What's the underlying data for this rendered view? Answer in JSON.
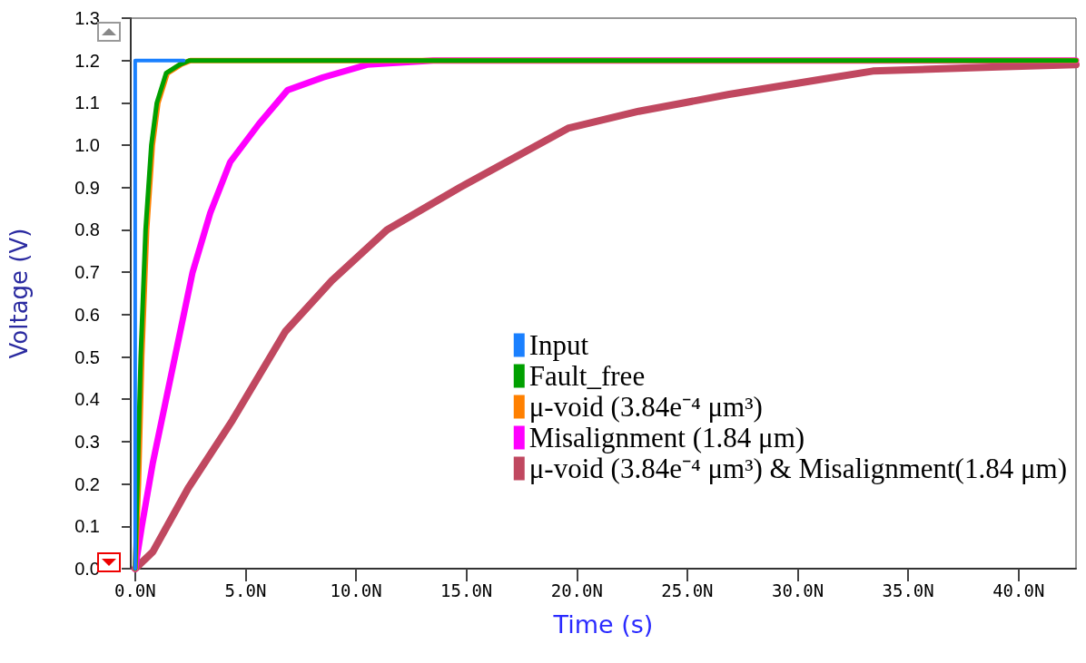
{
  "chart_data": {
    "type": "line",
    "xlabel": "Time (s)",
    "ylabel": "Voltage (V)",
    "xlim": [
      -0.2,
      42.6
    ],
    "ylim": [
      0,
      1.3
    ],
    "xticks": [
      {
        "value": 0,
        "label": "0.0N"
      },
      {
        "value": 5,
        "label": "5.0N"
      },
      {
        "value": 10,
        "label": "10.0N"
      },
      {
        "value": 15,
        "label": "15.0N"
      },
      {
        "value": 20,
        "label": "20.0N"
      },
      {
        "value": 25,
        "label": "25.0N"
      },
      {
        "value": 30,
        "label": "30.0N"
      },
      {
        "value": 35,
        "label": "35.0N"
      },
      {
        "value": 40,
        "label": "40.0N"
      }
    ],
    "yticks": [
      {
        "value": 0,
        "label": "0.0"
      },
      {
        "value": 0.1,
        "label": "0.1"
      },
      {
        "value": 0.2,
        "label": "0.2"
      },
      {
        "value": 0.3,
        "label": "0.3"
      },
      {
        "value": 0.4,
        "label": "0.4"
      },
      {
        "value": 0.5,
        "label": "0.5"
      },
      {
        "value": 0.6,
        "label": "0.6"
      },
      {
        "value": 0.7,
        "label": "0.7"
      },
      {
        "value": 0.8,
        "label": "0.8"
      },
      {
        "value": 0.9,
        "label": "0.9"
      },
      {
        "value": 1.0,
        "label": "1.0"
      },
      {
        "value": 1.1,
        "label": "1.1"
      },
      {
        "value": 1.2,
        "label": "1.2"
      },
      {
        "value": 1.3,
        "label": "1.3"
      }
    ],
    "grid": false,
    "legend": "bottom right",
    "marker": "none",
    "line_style": "solid",
    "series": [
      {
        "name": "Input",
        "color": "#1a80ff",
        "x": [
          0,
          0,
          2.2
        ],
        "values": [
          0,
          1.2,
          1.2
        ]
      },
      {
        "name": "Fault_free",
        "color": "#00a000",
        "x": [
          0,
          0.1,
          0.25,
          0.47,
          0.73,
          0.98,
          1.4,
          2.0,
          2.45,
          42.6
        ],
        "values": [
          0,
          0.2,
          0.5,
          0.8,
          1.0,
          1.1,
          1.17,
          1.19,
          1.2,
          1.2
        ]
      },
      {
        "name": "μ-void (3.84e⁻⁴ μm³)",
        "color": "#ff8000",
        "x": [
          0,
          0.15,
          0.3,
          0.52,
          0.78,
          1.03,
          1.45,
          2.05,
          2.5,
          42.6
        ],
        "values": [
          0,
          0.2,
          0.5,
          0.8,
          1.0,
          1.1,
          1.17,
          1.19,
          1.2,
          1.2
        ]
      },
      {
        "name": "Misalignment (1.84 μm)",
        "color": "#ff00ff",
        "x": [
          0,
          0.3,
          0.8,
          1.4,
          2.0,
          2.6,
          3.4,
          4.3,
          5.6,
          6.9,
          8.5,
          10.5,
          13.5,
          42.6
        ],
        "values": [
          0,
          0.1,
          0.25,
          0.4,
          0.55,
          0.7,
          0.84,
          0.96,
          1.05,
          1.13,
          1.16,
          1.19,
          1.2,
          1.2
        ]
      },
      {
        "name": "μ-void (3.84e⁻⁴ μm³) & Misalignment(1.84 μm)",
        "color": "#c04860",
        "x": [
          0,
          0.8,
          2.4,
          4.4,
          6.8,
          8.9,
          11.4,
          14.7,
          19.6,
          22.8,
          26.9,
          31,
          33.4,
          39.1,
          42.6
        ],
        "values": [
          0,
          0.04,
          0.19,
          0.35,
          0.56,
          0.68,
          0.8,
          0.9,
          1.04,
          1.08,
          1.12,
          1.155,
          1.175,
          1.185,
          1.19
        ]
      }
    ]
  }
}
